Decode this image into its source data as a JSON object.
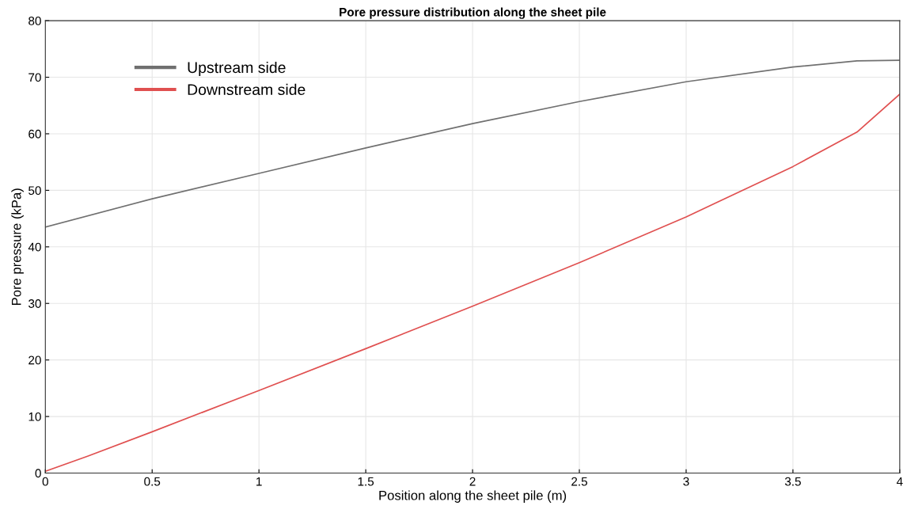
{
  "chart_data": {
    "type": "line",
    "title": "Pore pressure distribution along the sheet pile",
    "xlabel": "Position along the sheet pile (m)",
    "ylabel": "Pore pressure (kPa)",
    "xlim": [
      0,
      4
    ],
    "xticks": [
      0,
      0.5,
      1,
      1.5,
      2,
      2.5,
      3,
      3.5,
      4
    ],
    "ylim": [
      0,
      80
    ],
    "yticks": [
      0,
      10,
      20,
      30,
      40,
      50,
      60,
      70,
      80
    ],
    "grid": true,
    "legend": "top left",
    "series": [
      {
        "name": "Upstream side",
        "color": "#707070",
        "x": [
          0,
          0.5,
          1,
          1.5,
          2,
          2.5,
          3,
          3.5,
          3.8,
          4
        ],
        "values": [
          43.5,
          48.5,
          53,
          57.5,
          61.8,
          65.7,
          69.2,
          71.8,
          72.9,
          73
        ]
      },
      {
        "name": "Downstream side",
        "color": "#e05050",
        "x": [
          0,
          0.2,
          0.5,
          1,
          1.5,
          2,
          2.5,
          3,
          3.5,
          3.8,
          4
        ],
        "values": [
          0.3,
          3,
          7.3,
          14.6,
          22,
          29.5,
          37.2,
          45.3,
          54.2,
          60.3,
          67
        ]
      }
    ]
  }
}
